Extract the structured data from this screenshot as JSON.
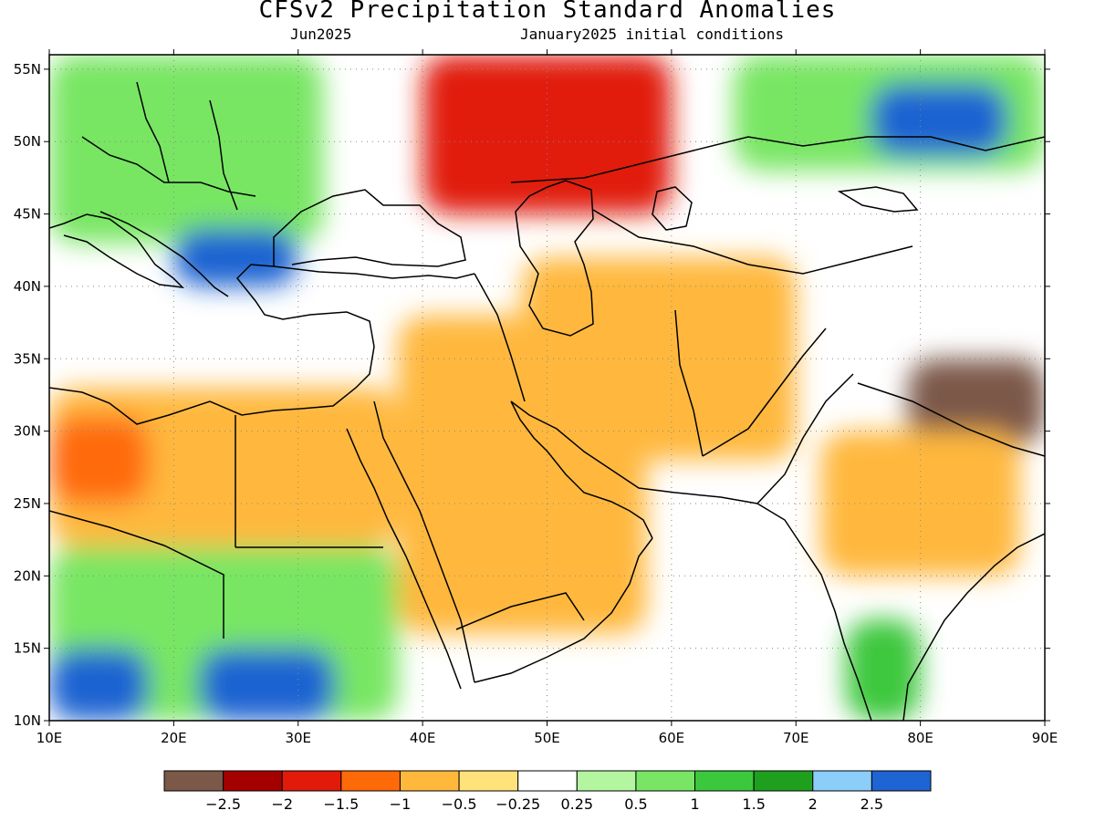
{
  "title": "CFSv2 Precipitation Standard Anomalies",
  "subtitle_left": "Jun2025",
  "subtitle_right": "January2025 initial conditions",
  "map": {
    "lon_range": [
      10,
      90
    ],
    "lat_range": [
      10,
      56
    ],
    "lon_ticks": [
      "10E",
      "20E",
      "30E",
      "40E",
      "50E",
      "60E",
      "70E",
      "80E",
      "90E"
    ],
    "lat_ticks": [
      "10N",
      "15N",
      "20N",
      "25N",
      "30N",
      "35N",
      "40N",
      "45N",
      "50N",
      "55N"
    ],
    "grid": "dotted"
  },
  "colorbar": {
    "colors": [
      "#7b5848",
      "#a50000",
      "#e11a0a",
      "#ff6a08",
      "#ffb83c",
      "#ffe37a",
      "#ffffff",
      "#b4f5a0",
      "#78e664",
      "#3cc83c",
      "#1ea01e",
      "#8ccdfa",
      "#1e64d2"
    ],
    "labels": [
      "−2.5",
      "−2",
      "−1.5",
      "−1",
      "−0.5",
      "−0.25",
      "0.25",
      "0.5",
      "1",
      "1.5",
      "2",
      "2.5"
    ]
  },
  "anomaly_regions": [
    {
      "name": "north-africa-dry",
      "lon": [
        10,
        38
      ],
      "lat": [
        22,
        33
      ],
      "level": "-0.5"
    },
    {
      "name": "libya-dry-core",
      "lon": [
        10,
        18
      ],
      "lat": [
        25,
        31
      ],
      "level": "-1"
    },
    {
      "name": "sahel-wet",
      "lon": [
        10,
        38
      ],
      "lat": [
        10,
        22
      ],
      "level": "1"
    },
    {
      "name": "chad-very-wet",
      "lon": [
        10,
        18
      ],
      "lat": [
        10,
        15
      ],
      "level": "2.5"
    },
    {
      "name": "sudan-very-wet",
      "lon": [
        22,
        33
      ],
      "lat": [
        10,
        15
      ],
      "level": "2.5"
    },
    {
      "name": "europe-wet",
      "lon": [
        10,
        32
      ],
      "lat": [
        43,
        56
      ],
      "level": "1"
    },
    {
      "name": "balkans-very-wet",
      "lon": [
        20,
        30
      ],
      "lat": [
        40,
        44
      ],
      "level": "2.5"
    },
    {
      "name": "russia-dry",
      "lon": [
        40,
        60
      ],
      "lat": [
        45,
        56
      ],
      "level": "-1.5"
    },
    {
      "name": "arabia-dry",
      "lon": [
        38,
        58
      ],
      "lat": [
        16,
        38
      ],
      "level": "-0.5"
    },
    {
      "name": "iran-afghanistan-dry",
      "lon": [
        48,
        70
      ],
      "lat": [
        28,
        42
      ],
      "level": "-0.5"
    },
    {
      "name": "central-asia-wet",
      "lon": [
        65,
        90
      ],
      "lat": [
        48,
        56
      ],
      "level": "1"
    },
    {
      "name": "kazakhstan-very-wet",
      "lon": [
        76,
        87
      ],
      "lat": [
        49,
        54
      ],
      "level": "2.5"
    },
    {
      "name": "tibet-very-dry",
      "lon": [
        79,
        90
      ],
      "lat": [
        29,
        35
      ],
      "level": "-2.5"
    },
    {
      "name": "india-dry",
      "lon": [
        72,
        88
      ],
      "lat": [
        20,
        30
      ],
      "level": "-0.5"
    },
    {
      "name": "south-india-wet",
      "lon": [
        74,
        80
      ],
      "lat": [
        10,
        17
      ],
      "level": "1.5"
    }
  ]
}
